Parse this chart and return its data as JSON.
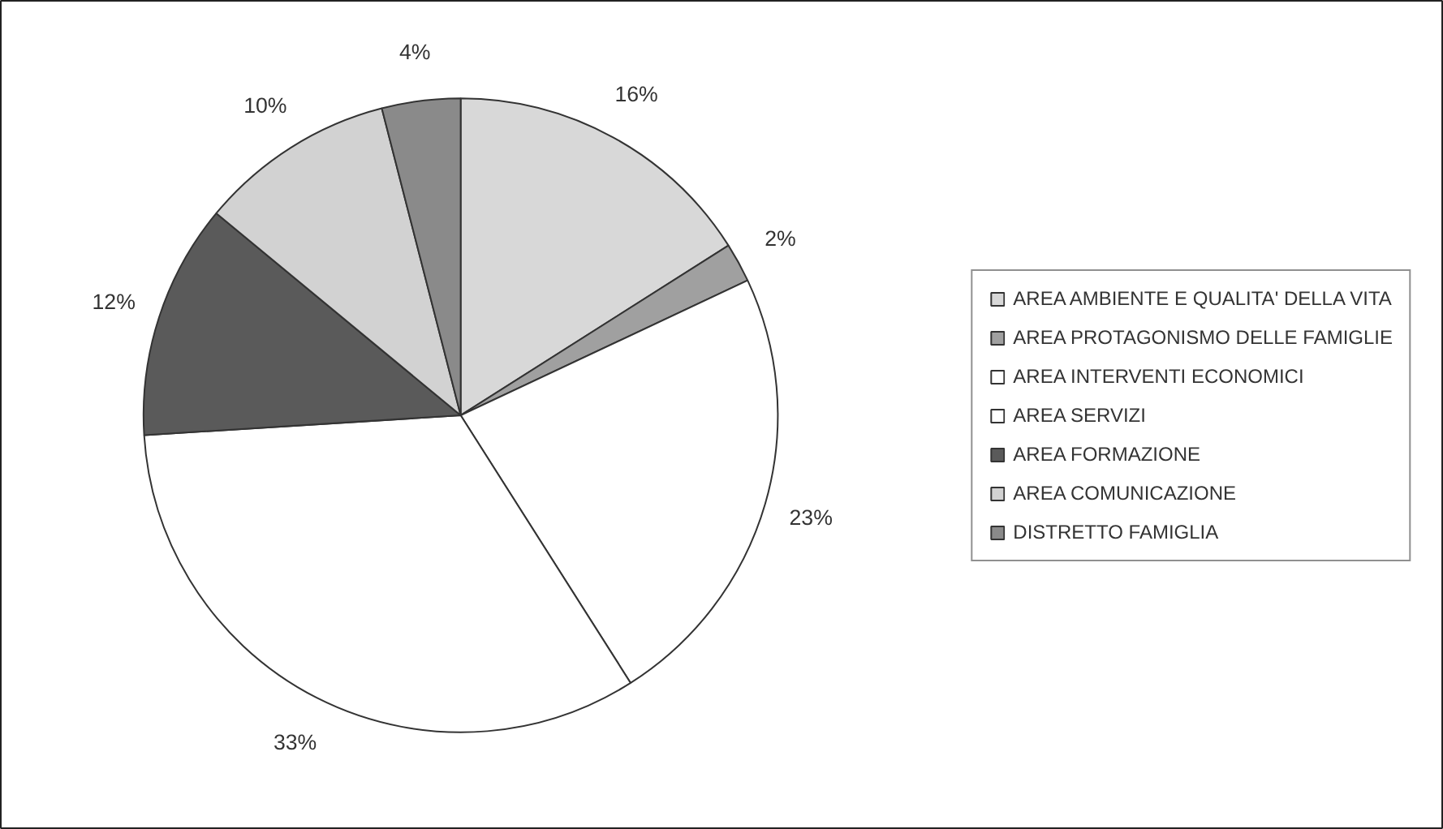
{
  "chart_data": {
    "type": "pie",
    "categories": [
      "AREA AMBIENTE E QUALITA' DELLA VITA",
      "AREA PROTAGONISMO DELLE FAMIGLIE",
      "AREA INTERVENTI ECONOMICI",
      "AREA SERVIZI",
      "AREA FORMAZIONE",
      "AREA COMUNICAZIONE",
      "DISTRETTO FAMIGLIA"
    ],
    "values": [
      16,
      2,
      23,
      33,
      12,
      10,
      4
    ],
    "colors": [
      "#d8d8d8",
      "#a0a0a0",
      "#ffffff",
      "#ffffff",
      "#5a5a5a",
      "#d2d2d2",
      "#8a8a8a"
    ],
    "value_labels": [
      "16%",
      "2%",
      "23%",
      "33%",
      "12%",
      "10%",
      "4%"
    ],
    "legend": "right"
  }
}
